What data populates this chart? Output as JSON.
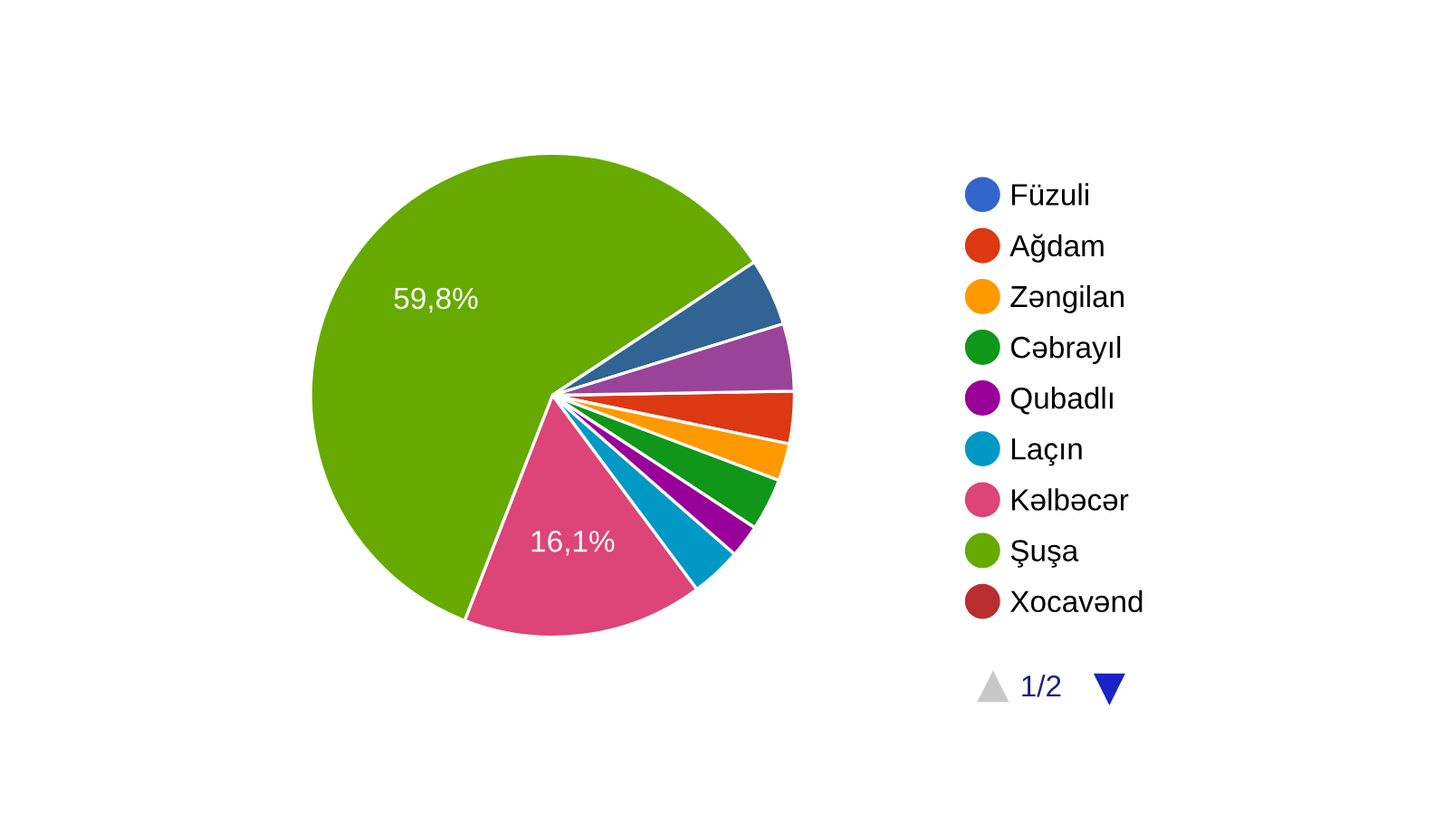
{
  "chart_data": {
    "type": "pie",
    "categories": [
      "Füzuli",
      "Ağdam",
      "Zəngilan",
      "Cəbrayıl",
      "Qubadlı",
      "Laçın",
      "Kəlbəcər",
      "Şuşa",
      "Xocavənd",
      null,
      null
    ],
    "values": [
      0,
      3.5,
      2.5,
      3.5,
      2.2,
      3.4,
      16.1,
      59.8,
      0,
      4.5,
      4.5
    ],
    "colors": [
      "#3366cc",
      "#dc3912",
      "#ff9900",
      "#109618",
      "#990099",
      "#0099c6",
      "#dd4477",
      "#66aa00",
      "#b82e2e",
      "#316395",
      "#994499"
    ],
    "value_labels": [
      null,
      null,
      null,
      null,
      null,
      null,
      "16,1%",
      "59,8%",
      null,
      null,
      null
    ],
    "legend": "right",
    "annotations": [
      "1/2"
    ]
  }
}
